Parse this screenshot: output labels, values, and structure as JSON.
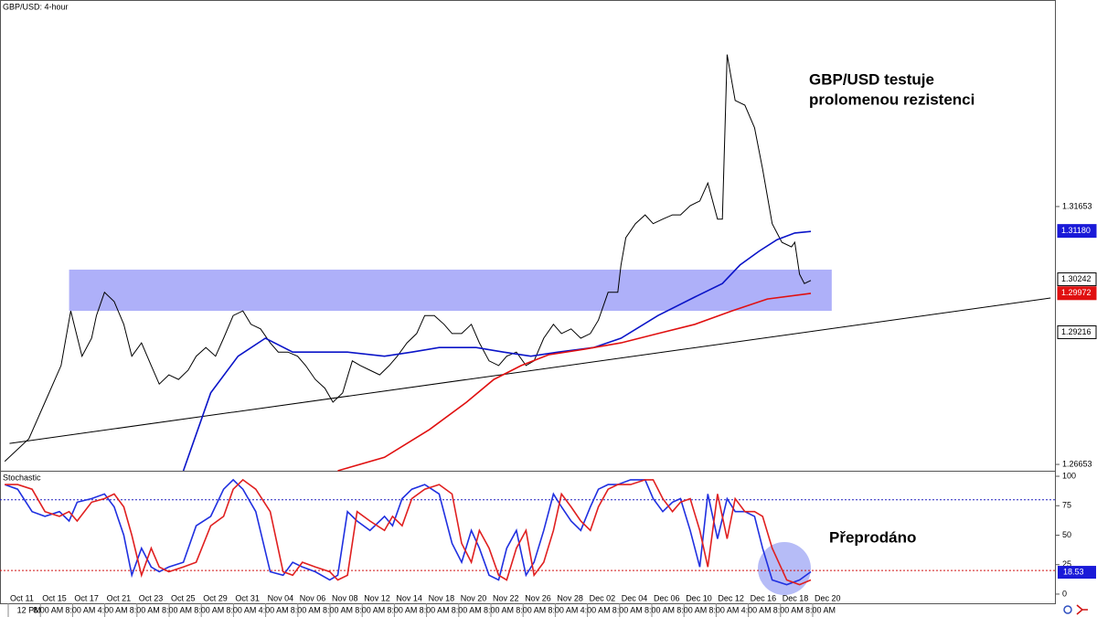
{
  "chart_data": [
    {
      "type": "line",
      "title": "GBP/USD: 4-hour",
      "xlim": [
        -0.795,
        64.83
      ],
      "ylim": [
        1.2653,
        1.3564
      ],
      "yticks": [
        1.31653,
        1.26653
      ],
      "series": [
        {
          "name": "GBP/USD",
          "color": "#000000",
          "x": [
            -0.5,
            1.0,
            2.0,
            3.0,
            3.6,
            4.3,
            4.9,
            5.2,
            5.7,
            6.3,
            6.9,
            7.4,
            8.0,
            8.6,
            9.1,
            9.7,
            10.3,
            10.9,
            11.4,
            12.0,
            12.6,
            13.1,
            13.7,
            14.3,
            14.8,
            15.4,
            16.0,
            16.5,
            17.1,
            17.7,
            18.2,
            18.8,
            19.4,
            19.9,
            20.5,
            21.1,
            21.6,
            22.2,
            22.8,
            23.4,
            23.9,
            24.5,
            25.1,
            25.6,
            26.2,
            26.8,
            27.3,
            27.9,
            28.5,
            29.0,
            29.6,
            30.2,
            30.7,
            31.3,
            31.9,
            32.4,
            33.0,
            33.6,
            34.1,
            34.7,
            35.3,
            35.9,
            36.4,
            37.0,
            37.6,
            37.8,
            38.1,
            38.7,
            39.3,
            39.8,
            40.4,
            41.0,
            41.5,
            42.1,
            42.7,
            43.2,
            43.8,
            44.1,
            44.4,
            44.7,
            44.9,
            45.5,
            46.1,
            46.6,
            47.2,
            47.8,
            48.4,
            48.6,
            48.9,
            49.2,
            49.6
          ],
          "values": [
            1.2671,
            1.2715,
            1.2786,
            1.2857,
            1.2963,
            1.2875,
            1.291,
            1.2954,
            1.2999,
            1.2981,
            1.2937,
            1.2875,
            1.2901,
            1.2857,
            1.2821,
            1.2839,
            1.283,
            1.2848,
            1.2875,
            1.2892,
            1.2875,
            1.291,
            1.2954,
            1.2963,
            1.2937,
            1.2928,
            1.2901,
            1.2883,
            1.2883,
            1.2875,
            1.2857,
            1.283,
            1.2813,
            1.2786,
            1.2804,
            1.2866,
            1.2857,
            1.2848,
            1.2839,
            1.2857,
            1.2875,
            1.2901,
            1.2919,
            1.2954,
            1.2954,
            1.2937,
            1.2919,
            1.2919,
            1.2937,
            1.2901,
            1.2866,
            1.2857,
            1.2875,
            1.2883,
            1.2857,
            1.2866,
            1.291,
            1.2937,
            1.2919,
            1.2928,
            1.291,
            1.2919,
            1.2945,
            1.2999,
            1.2999,
            1.3052,
            1.3105,
            1.3132,
            1.3149,
            1.3132,
            1.3141,
            1.3149,
            1.3149,
            1.3167,
            1.3176,
            1.3211,
            1.3141,
            1.3141,
            1.346,
            1.3406,
            1.3371,
            1.3362,
            1.3318,
            1.3238,
            1.3132,
            1.3096,
            1.3087,
            1.3096,
            1.3034,
            1.3016,
            1.3022
          ]
        },
        {
          "name": "MA blue",
          "color": "#0a14c8",
          "x": [
            10.6,
            12.3,
            14.0,
            15.7,
            17.4,
            18.8,
            20.8,
            23.1,
            24.8,
            26.5,
            28.8,
            30.5,
            32.2,
            33.9,
            36.1,
            37.8,
            40.1,
            42.4,
            44.1,
            45.2,
            46.4,
            47.5,
            48.6,
            49.6
          ],
          "values": [
            1.2653,
            1.2804,
            1.2875,
            1.291,
            1.2883,
            1.2883,
            1.2883,
            1.2875,
            1.2883,
            1.2892,
            1.2892,
            1.2883,
            1.2875,
            1.2883,
            1.2892,
            1.291,
            1.2954,
            1.299,
            1.3016,
            1.3052,
            1.3079,
            1.3101,
            1.3114,
            1.3117
          ]
        },
        {
          "name": "MA red",
          "color": "#e01010",
          "x": [
            20.2,
            23.1,
            25.9,
            28.2,
            29.9,
            31.6,
            33.3,
            35.6,
            37.8,
            40.1,
            42.4,
            44.7,
            46.9,
            49.6
          ],
          "values": [
            1.2653,
            1.2679,
            1.2733,
            1.2786,
            1.283,
            1.2857,
            1.2878,
            1.2889,
            1.2901,
            1.2919,
            1.2937,
            1.2963,
            1.2986,
            1.2997
          ]
        }
      ],
      "trendline": {
        "x": [
          -0.2,
          64.5
        ],
        "y": [
          1.2706,
          1.2988
        ],
        "color": "#000000"
      },
      "zone": {
        "x": [
          3.5,
          50.9
        ],
        "y": [
          1.2963,
          1.3043
        ],
        "color": "#9a9cf8"
      },
      "price_labels": [
        {
          "value": 1.3118,
          "label": "1.31180",
          "color": "#1a1ad8"
        },
        {
          "value": 1.30242,
          "label": "1.30242",
          "color": "#ffffff"
        },
        {
          "value": 1.29972,
          "label": "1.29972",
          "color": "#e01010"
        },
        {
          "value": 1.29216,
          "label": "1.29216",
          "color": "#ffffff"
        }
      ],
      "annotation": [
        "GBP/USD testuje",
        "prolomenou rezistenci"
      ]
    },
    {
      "type": "line",
      "title": "Stochastic",
      "xlim": [
        -0.795,
        64.83
      ],
      "ylim": [
        -7.8,
        103.9
      ],
      "yticks": [
        100,
        75,
        50,
        25,
        0
      ],
      "levels": [
        {
          "value": 80,
          "color": "#2020c0"
        },
        {
          "value": 20,
          "color": "#d01010"
        }
      ],
      "series": [
        {
          "name": "%K",
          "color": "#2030e0",
          "x": [
            -0.5,
            0.3,
            1.2,
            2.0,
            2.9,
            3.5,
            4.0,
            4.9,
            5.7,
            6.3,
            6.9,
            7.4,
            8.0,
            8.6,
            9.1,
            9.7,
            10.6,
            11.4,
            12.3,
            13.1,
            13.7,
            14.3,
            15.1,
            16.0,
            16.8,
            17.4,
            18.0,
            18.8,
            19.7,
            20.2,
            20.8,
            21.4,
            22.2,
            23.1,
            23.6,
            24.2,
            24.8,
            25.6,
            26.5,
            27.3,
            27.9,
            28.5,
            29.0,
            29.6,
            30.2,
            30.7,
            31.3,
            31.9,
            32.4,
            33.0,
            33.6,
            34.1,
            34.7,
            35.3,
            35.9,
            36.4,
            37.0,
            37.6,
            38.4,
            39.3,
            39.8,
            40.4,
            41.0,
            41.5,
            42.1,
            42.7,
            43.2,
            43.8,
            44.4,
            44.9,
            45.5,
            46.1,
            46.6,
            47.2,
            48.1,
            48.9,
            49.6
          ],
          "values": [
            93,
            89,
            70,
            66,
            70,
            62,
            78,
            81,
            85,
            74,
            50,
            16,
            39,
            23,
            19,
            23,
            27,
            58,
            66,
            89,
            97,
            89,
            70,
            19,
            16,
            27,
            23,
            19,
            12,
            16,
            70,
            62,
            54,
            66,
            58,
            81,
            89,
            93,
            85,
            43,
            27,
            54,
            39,
            16,
            12,
            39,
            54,
            16,
            27,
            54,
            85,
            74,
            62,
            54,
            74,
            89,
            93,
            93,
            97,
            97,
            81,
            70,
            78,
            81,
            54,
            23,
            85,
            47,
            81,
            70,
            70,
            66,
            39,
            12,
            8,
            12,
            19
          ]
        },
        {
          "name": "%D",
          "color": "#e02020",
          "x": [
            -0.5,
            0.3,
            1.2,
            2.0,
            2.9,
            3.5,
            4.0,
            4.9,
            5.7,
            6.3,
            6.9,
            7.4,
            8.0,
            8.6,
            9.1,
            9.7,
            10.6,
            11.4,
            12.3,
            13.1,
            13.7,
            14.3,
            15.1,
            16.0,
            16.8,
            17.4,
            18.0,
            18.8,
            19.7,
            20.2,
            20.8,
            21.4,
            22.2,
            23.1,
            23.6,
            24.2,
            24.8,
            25.6,
            26.5,
            27.3,
            27.9,
            28.5,
            29.0,
            29.6,
            30.2,
            30.7,
            31.3,
            31.9,
            32.4,
            33.0,
            33.6,
            34.1,
            34.7,
            35.3,
            35.9,
            36.4,
            37.0,
            37.6,
            38.4,
            39.3,
            39.8,
            40.4,
            41.0,
            41.5,
            42.1,
            42.7,
            43.2,
            43.8,
            44.4,
            44.9,
            45.5,
            46.1,
            46.6,
            47.2,
            48.1,
            48.9,
            49.6
          ],
          "values": [
            93,
            93,
            89,
            70,
            66,
            70,
            62,
            78,
            81,
            85,
            74,
            50,
            16,
            39,
            23,
            19,
            23,
            27,
            58,
            66,
            89,
            97,
            89,
            70,
            19,
            16,
            27,
            23,
            19,
            12,
            16,
            70,
            62,
            54,
            66,
            58,
            81,
            89,
            93,
            85,
            43,
            27,
            54,
            39,
            16,
            12,
            39,
            54,
            16,
            27,
            54,
            85,
            74,
            62,
            54,
            74,
            89,
            93,
            93,
            97,
            97,
            81,
            70,
            78,
            81,
            54,
            23,
            85,
            47,
            81,
            70,
            70,
            66,
            39,
            12,
            8,
            12
          ]
        }
      ],
      "current_label": {
        "value": 18.53,
        "color": "#1a1ad8"
      },
      "xticks": [
        {
          "value": 0,
          "label": "Oct 11"
        },
        {
          "value": 2,
          "label": "Oct 15"
        },
        {
          "value": 4,
          "label": "Oct 17"
        },
        {
          "value": 6,
          "label": "Oct 21"
        },
        {
          "value": 8,
          "label": "Oct 23"
        },
        {
          "value": 10,
          "label": "Oct 25"
        },
        {
          "value": 12,
          "label": "Oct 29"
        },
        {
          "value": 14,
          "label": "Oct 31"
        },
        {
          "value": 16,
          "label": "Nov 04"
        },
        {
          "value": 18,
          "label": "Nov 06"
        },
        {
          "value": 20,
          "label": "Nov 08"
        },
        {
          "value": 22,
          "label": "Nov 12"
        },
        {
          "value": 24,
          "label": "Nov 14"
        },
        {
          "value": 26,
          "label": "Nov 18"
        },
        {
          "value": 28,
          "label": "Nov 20"
        },
        {
          "value": 30,
          "label": "Nov 22"
        },
        {
          "value": 32,
          "label": "Nov 26"
        },
        {
          "value": 34,
          "label": "Nov 28"
        },
        {
          "value": 36,
          "label": "Dec 02"
        },
        {
          "value": 38,
          "label": "Dec 04"
        },
        {
          "value": 40,
          "label": "Dec 06"
        },
        {
          "value": 42,
          "label": "Dec 10"
        },
        {
          "value": 44,
          "label": "Dec 12"
        },
        {
          "value": 46,
          "label": "Dec 16"
        },
        {
          "value": 48,
          "label": "Dec 18"
        },
        {
          "value": 50,
          "label": "Dec 20"
        }
      ],
      "time_ticks": [
        {
          "value": 1.0,
          "label": "12 PM"
        },
        {
          "value": 2.2,
          "label": "8:00 AM"
        },
        {
          "value": 4.2,
          "label": "8:00 AM"
        },
        {
          "value": 6.2,
          "label": "4:00 AM"
        },
        {
          "value": 8.2,
          "label": "8:00 AM"
        },
        {
          "value": 10.2,
          "label": "8:00 AM"
        },
        {
          "value": 12.2,
          "label": "8:00 AM"
        },
        {
          "value": 14.2,
          "label": "8:00 AM"
        },
        {
          "value": 16.2,
          "label": "4:00 AM"
        },
        {
          "value": 18.2,
          "label": "8:00 AM"
        },
        {
          "value": 20.2,
          "label": "8:00 AM"
        },
        {
          "value": 22.2,
          "label": "8:00 AM"
        },
        {
          "value": 24.2,
          "label": "8:00 AM"
        },
        {
          "value": 26.2,
          "label": "8:00 AM"
        },
        {
          "value": 28.2,
          "label": "8:00 AM"
        },
        {
          "value": 30.2,
          "label": "8:00 AM"
        },
        {
          "value": 32.2,
          "label": "8:00 AM"
        },
        {
          "value": 34.2,
          "label": "8:00 AM"
        },
        {
          "value": 36.2,
          "label": "4:00 AM"
        },
        {
          "value": 38.2,
          "label": "8:00 AM"
        },
        {
          "value": 40.2,
          "label": "8:00 AM"
        },
        {
          "value": 42.2,
          "label": "8:00 AM"
        },
        {
          "value": 44.2,
          "label": "8:00 AM"
        },
        {
          "value": 46.2,
          "label": "4:00 AM"
        },
        {
          "value": 48.2,
          "label": "8:00 AM"
        },
        {
          "value": 50.2,
          "label": "8:00 AM"
        }
      ],
      "annotation": [
        "Přeprodáno"
      ]
    }
  ]
}
